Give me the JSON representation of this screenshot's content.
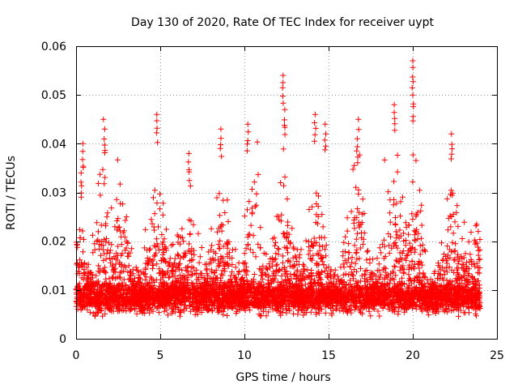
{
  "chart_data": {
    "type": "scatter",
    "title": "Day 130 of 2020, Rate Of TEC Index for receiver uypt",
    "xlabel": "GPS time / hours",
    "ylabel": "ROTI / TECUs",
    "xlim": [
      0,
      25
    ],
    "ylim": [
      0,
      0.06
    ],
    "x_ticks": [
      0,
      5,
      10,
      15,
      20,
      25
    ],
    "x_tick_labels": [
      "0",
      "5",
      "10",
      "15",
      "20",
      "25"
    ],
    "y_ticks": [
      0,
      0.01,
      0.02,
      0.03,
      0.04,
      0.05,
      0.06
    ],
    "y_tick_labels": [
      "0",
      "0.01",
      "0.02",
      "0.03",
      "0.04",
      "0.05",
      "0.06"
    ],
    "grid": true,
    "marker": "+",
    "color": "#ff0000",
    "data_x_range_hours": [
      0,
      24
    ],
    "typical_range": [
      0.004,
      0.02
    ],
    "peaks": [
      {
        "x": 0.3,
        "y": 0.034
      },
      {
        "x": 0.4,
        "y": 0.04
      },
      {
        "x": 1.7,
        "y": 0.043
      },
      {
        "x": 4.8,
        "y": 0.046
      },
      {
        "x": 6.7,
        "y": 0.038
      },
      {
        "x": 8.6,
        "y": 0.043
      },
      {
        "x": 10.2,
        "y": 0.044
      },
      {
        "x": 12.3,
        "y": 0.054
      },
      {
        "x": 12.4,
        "y": 0.047
      },
      {
        "x": 14.2,
        "y": 0.046
      },
      {
        "x": 14.8,
        "y": 0.044
      },
      {
        "x": 16.7,
        "y": 0.041
      },
      {
        "x": 18.9,
        "y": 0.048
      },
      {
        "x": 20.0,
        "y": 0.057
      },
      {
        "x": 20.0,
        "y": 0.05
      },
      {
        "x": 22.3,
        "y": 0.042
      }
    ]
  }
}
